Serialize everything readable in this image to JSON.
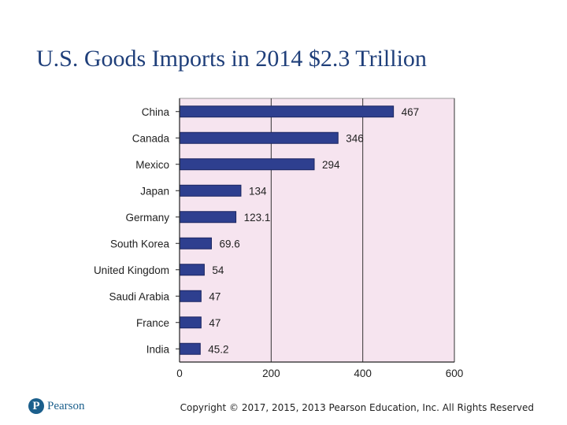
{
  "slide": {
    "title": "U.S. Goods Imports in 2014 $2.3 Trillion",
    "copyright": "Copyright © 2017, 2015, 2013 Pearson Education, Inc. All Rights Reserved",
    "logo_text": "Pearson",
    "logo_mark": "P"
  },
  "chart_data": {
    "type": "bar",
    "orientation": "horizontal",
    "categories": [
      "China",
      "Canada",
      "Mexico",
      "Japan",
      "Germany",
      "South Korea",
      "United Kingdom",
      "Saudi Arabia",
      "France",
      "India"
    ],
    "values": [
      467,
      346,
      294,
      134,
      123.1,
      69.6,
      54,
      47,
      47,
      45.2
    ],
    "value_labels": [
      "467",
      "346",
      "294",
      "134",
      "123.1",
      "69.6",
      "54",
      "47",
      "47",
      "45.2"
    ],
    "xlim": [
      0,
      600
    ],
    "xticks": [
      0,
      200,
      400,
      600
    ],
    "grid": true,
    "colors": {
      "bar": "#2e3f8f",
      "bar_edge": "#1a2560",
      "plot_background": "#f6e4ef",
      "gridline": "#333333"
    }
  }
}
